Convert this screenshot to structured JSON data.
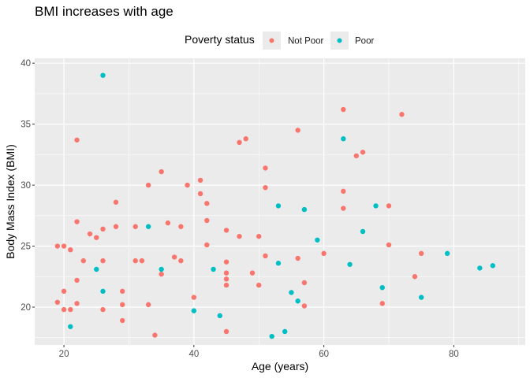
{
  "chart_data": {
    "type": "scatter",
    "title": "BMI increases with age",
    "xlabel": "Age (years)",
    "ylabel": "Body Mass Index (BMI)",
    "xlim": [
      15.5,
      91
    ],
    "ylim": [
      16.9,
      40.4
    ],
    "xticks": [
      20,
      40,
      60,
      80
    ],
    "yticks": [
      20,
      25,
      30,
      35,
      40
    ],
    "grid": true,
    "legend": {
      "title": "Poverty status",
      "placement": "top",
      "entries": [
        "Not Poor",
        "Poor"
      ]
    },
    "series": [
      {
        "name": "Not Poor",
        "color": "#F8766D",
        "points": [
          [
            19,
            25.0
          ],
          [
            19,
            20.4
          ],
          [
            20,
            25.0
          ],
          [
            20,
            21.3
          ],
          [
            20,
            19.8
          ],
          [
            21,
            24.7
          ],
          [
            21,
            19.8
          ],
          [
            22,
            33.7
          ],
          [
            22,
            27.0
          ],
          [
            22,
            22.2
          ],
          [
            22,
            20.3
          ],
          [
            23,
            23.8
          ],
          [
            24,
            26.0
          ],
          [
            25,
            25.7
          ],
          [
            26,
            26.4
          ],
          [
            26,
            23.8
          ],
          [
            26,
            19.8
          ],
          [
            28,
            28.6
          ],
          [
            28,
            26.6
          ],
          [
            29,
            21.3
          ],
          [
            29,
            20.2
          ],
          [
            29,
            18.9
          ],
          [
            31,
            26.6
          ],
          [
            31,
            23.8
          ],
          [
            32,
            23.8
          ],
          [
            33,
            30.0
          ],
          [
            33,
            20.2
          ],
          [
            34,
            17.7
          ],
          [
            35,
            31.1
          ],
          [
            35,
            22.7
          ],
          [
            36,
            26.9
          ],
          [
            37,
            24.1
          ],
          [
            38,
            26.6
          ],
          [
            38,
            23.8
          ],
          [
            39,
            30.0
          ],
          [
            40,
            20.8
          ],
          [
            41,
            30.4
          ],
          [
            41,
            29.3
          ],
          [
            42,
            28.5
          ],
          [
            42,
            27.1
          ],
          [
            42,
            25.1
          ],
          [
            45,
            26.3
          ],
          [
            45,
            23.7
          ],
          [
            45,
            22.8
          ],
          [
            45,
            22.3
          ],
          [
            45,
            21.8
          ],
          [
            45,
            18.0
          ],
          [
            47,
            33.5
          ],
          [
            47,
            25.8
          ],
          [
            48,
            33.8
          ],
          [
            49,
            22.8
          ],
          [
            50,
            25.8
          ],
          [
            50,
            21.8
          ],
          [
            51,
            31.4
          ],
          [
            51,
            29.8
          ],
          [
            51,
            24.2
          ],
          [
            56,
            34.5
          ],
          [
            56,
            24.0
          ],
          [
            57,
            22.0
          ],
          [
            57,
            20.1
          ],
          [
            60,
            24.4
          ],
          [
            63,
            36.2
          ],
          [
            63,
            29.5
          ],
          [
            63,
            28.1
          ],
          [
            65,
            32.4
          ],
          [
            66,
            32.7
          ],
          [
            69,
            20.3
          ],
          [
            70,
            28.3
          ],
          [
            70,
            25.1
          ],
          [
            72,
            35.8
          ],
          [
            74,
            22.5
          ],
          [
            75,
            24.4
          ]
        ]
      },
      {
        "name": "Poor",
        "color": "#00BFC4",
        "points": [
          [
            21,
            18.4
          ],
          [
            25,
            23.1
          ],
          [
            26,
            39.0
          ],
          [
            26,
            21.3
          ],
          [
            33,
            26.6
          ],
          [
            35,
            23.1
          ],
          [
            40,
            19.7
          ],
          [
            43,
            23.1
          ],
          [
            44,
            19.3
          ],
          [
            52,
            17.6
          ],
          [
            53,
            28.3
          ],
          [
            53,
            23.6
          ],
          [
            54,
            18.0
          ],
          [
            55,
            21.2
          ],
          [
            56,
            20.5
          ],
          [
            57,
            28.0
          ],
          [
            59,
            25.5
          ],
          [
            63,
            33.8
          ],
          [
            64,
            23.5
          ],
          [
            66,
            26.2
          ],
          [
            68,
            28.3
          ],
          [
            69,
            21.6
          ],
          [
            75,
            20.8
          ],
          [
            79,
            24.4
          ],
          [
            84,
            23.2
          ],
          [
            86,
            23.4
          ]
        ]
      }
    ]
  }
}
